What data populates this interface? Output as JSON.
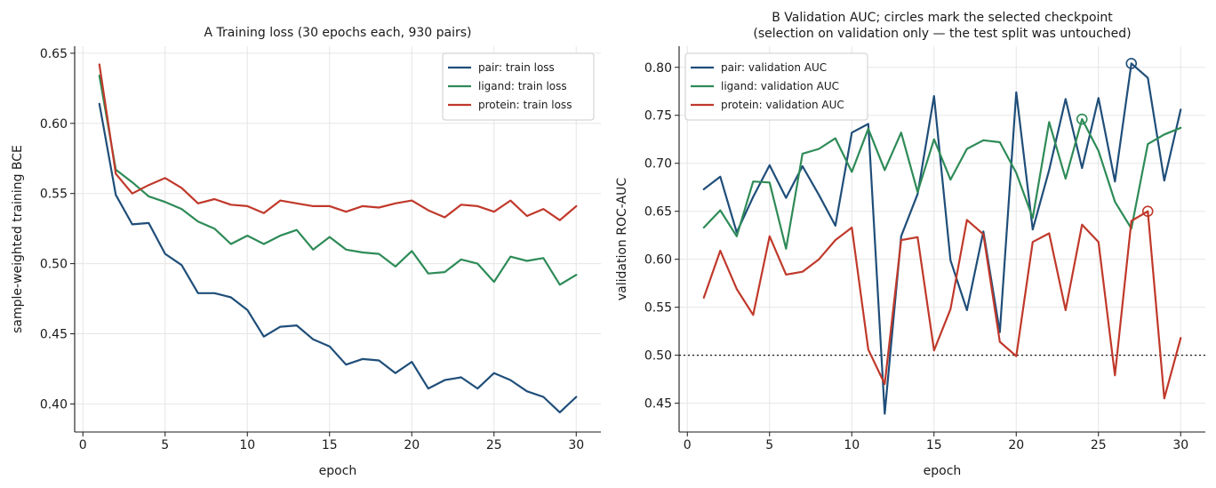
{
  "chart_data": [
    {
      "type": "line",
      "title": "A  Training loss (30 epochs each, 930 pairs)",
      "xlabel": "epoch",
      "ylabel": "sample-weighted training BCE",
      "xlim": [
        -0.5,
        31.5
      ],
      "ylim": [
        0.38,
        0.655
      ],
      "xticks": [
        0,
        5,
        10,
        15,
        20,
        25,
        30
      ],
      "yticks": [
        0.4,
        0.45,
        0.5,
        0.55,
        0.6,
        0.65
      ],
      "grid": true,
      "legend": "top-right",
      "x": [
        1,
        2,
        3,
        4,
        5,
        6,
        7,
        8,
        9,
        10,
        11,
        12,
        13,
        14,
        15,
        16,
        17,
        18,
        19,
        20,
        21,
        22,
        23,
        24,
        25,
        26,
        27,
        28,
        29,
        30
      ],
      "series": [
        {
          "name": "pair: train loss",
          "color": "#1f4e79",
          "values": [
            0.614,
            0.549,
            0.528,
            0.529,
            0.507,
            0.499,
            0.479,
            0.479,
            0.476,
            0.467,
            0.448,
            0.455,
            0.456,
            0.446,
            0.441,
            0.428,
            0.432,
            0.431,
            0.422,
            0.43,
            0.411,
            0.417,
            0.419,
            0.411,
            0.422,
            0.417,
            0.409,
            0.405,
            0.394,
            0.405
          ]
        },
        {
          "name": "ligand: train loss",
          "color": "#2e8b57",
          "values": [
            0.634,
            0.567,
            0.558,
            0.548,
            0.544,
            0.539,
            0.53,
            0.525,
            0.514,
            0.52,
            0.514,
            0.52,
            0.524,
            0.51,
            0.519,
            0.51,
            0.508,
            0.507,
            0.498,
            0.509,
            0.493,
            0.494,
            0.503,
            0.5,
            0.487,
            0.505,
            0.502,
            0.504,
            0.485,
            0.492
          ]
        },
        {
          "name": "protein: train loss",
          "color": "#c0392b",
          "values": [
            0.642,
            0.564,
            0.55,
            0.556,
            0.561,
            0.554,
            0.543,
            0.546,
            0.542,
            0.541,
            0.536,
            0.545,
            0.543,
            0.541,
            0.541,
            0.537,
            0.541,
            0.54,
            0.543,
            0.545,
            0.538,
            0.533,
            0.542,
            0.541,
            0.537,
            0.545,
            0.534,
            0.539,
            0.531,
            0.541
          ]
        }
      ]
    },
    {
      "type": "line",
      "title": "B  Validation AUC; circles mark the selected checkpoint",
      "subtitle": "(selection on validation only — the test split was untouched)",
      "xlabel": "epoch",
      "ylabel": "validation ROC-AUC",
      "xlim": [
        -0.5,
        31.5
      ],
      "ylim": [
        0.42,
        0.822
      ],
      "xticks": [
        0,
        5,
        10,
        15,
        20,
        25,
        30
      ],
      "yticks": [
        0.45,
        0.5,
        0.55,
        0.6,
        0.65,
        0.7,
        0.75,
        0.8
      ],
      "grid": true,
      "legend": "top-left",
      "reference_line": 0.5,
      "x": [
        1,
        2,
        3,
        4,
        5,
        6,
        7,
        8,
        9,
        10,
        11,
        12,
        13,
        14,
        15,
        16,
        17,
        18,
        19,
        20,
        21,
        22,
        23,
        24,
        25,
        26,
        27,
        28,
        29,
        30
      ],
      "series": [
        {
          "name": "pair: validation AUC",
          "color": "#1f4e79",
          "selected_epoch": 27,
          "values": [
            0.673,
            0.686,
            0.628,
            0.665,
            0.698,
            0.664,
            0.697,
            0.667,
            0.635,
            0.732,
            0.741,
            0.439,
            0.624,
            0.668,
            0.77,
            0.599,
            0.547,
            0.629,
            0.524,
            0.774,
            0.631,
            0.693,
            0.767,
            0.695,
            0.768,
            0.681,
            0.804,
            0.789,
            0.682,
            0.756
          ]
        },
        {
          "name": "ligand: validation AUC",
          "color": "#2e8b57",
          "selected_epoch": 24,
          "values": [
            0.633,
            0.651,
            0.624,
            0.681,
            0.68,
            0.611,
            0.71,
            0.715,
            0.726,
            0.691,
            0.736,
            0.693,
            0.732,
            0.67,
            0.725,
            0.683,
            0.715,
            0.724,
            0.722,
            0.69,
            0.643,
            0.743,
            0.684,
            0.746,
            0.713,
            0.66,
            0.632,
            0.72,
            0.73,
            0.737
          ]
        },
        {
          "name": "protein: validation AUC",
          "color": "#c0392b",
          "selected_epoch": 28,
          "values": [
            0.56,
            0.609,
            0.569,
            0.542,
            0.624,
            0.584,
            0.587,
            0.6,
            0.62,
            0.633,
            0.506,
            0.47,
            0.62,
            0.623,
            0.505,
            0.548,
            0.641,
            0.626,
            0.514,
            0.499,
            0.618,
            0.627,
            0.547,
            0.636,
            0.618,
            0.479,
            0.64,
            0.65,
            0.455,
            0.518
          ]
        }
      ]
    }
  ]
}
